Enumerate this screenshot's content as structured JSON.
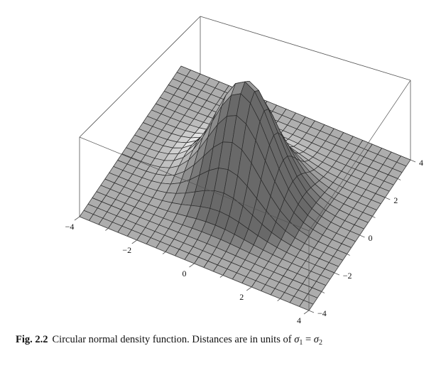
{
  "figure": {
    "label": "Fig. 2.2",
    "caption_text": "Circular normal density function. Distances are in units of ",
    "caption_math": {
      "symbol": "σ",
      "sub1": "1",
      "equals": "=",
      "sub2": "2"
    }
  },
  "chart_data": {
    "type": "surface3d",
    "function": "bivariate circular normal density f(x,y) ∝ exp(-(x²+y²)/2)",
    "x_range": [
      -4,
      4
    ],
    "y_range": [
      -4,
      4
    ],
    "x_ticks": [
      "−4",
      "−2",
      "0",
      "2",
      "4"
    ],
    "y_ticks": [
      "−4",
      "−2",
      "0",
      "2",
      "4"
    ],
    "grid_lines_per_axis": 25,
    "colors": {
      "mesh": "#2a2a2a",
      "box": "#555555"
    }
  }
}
